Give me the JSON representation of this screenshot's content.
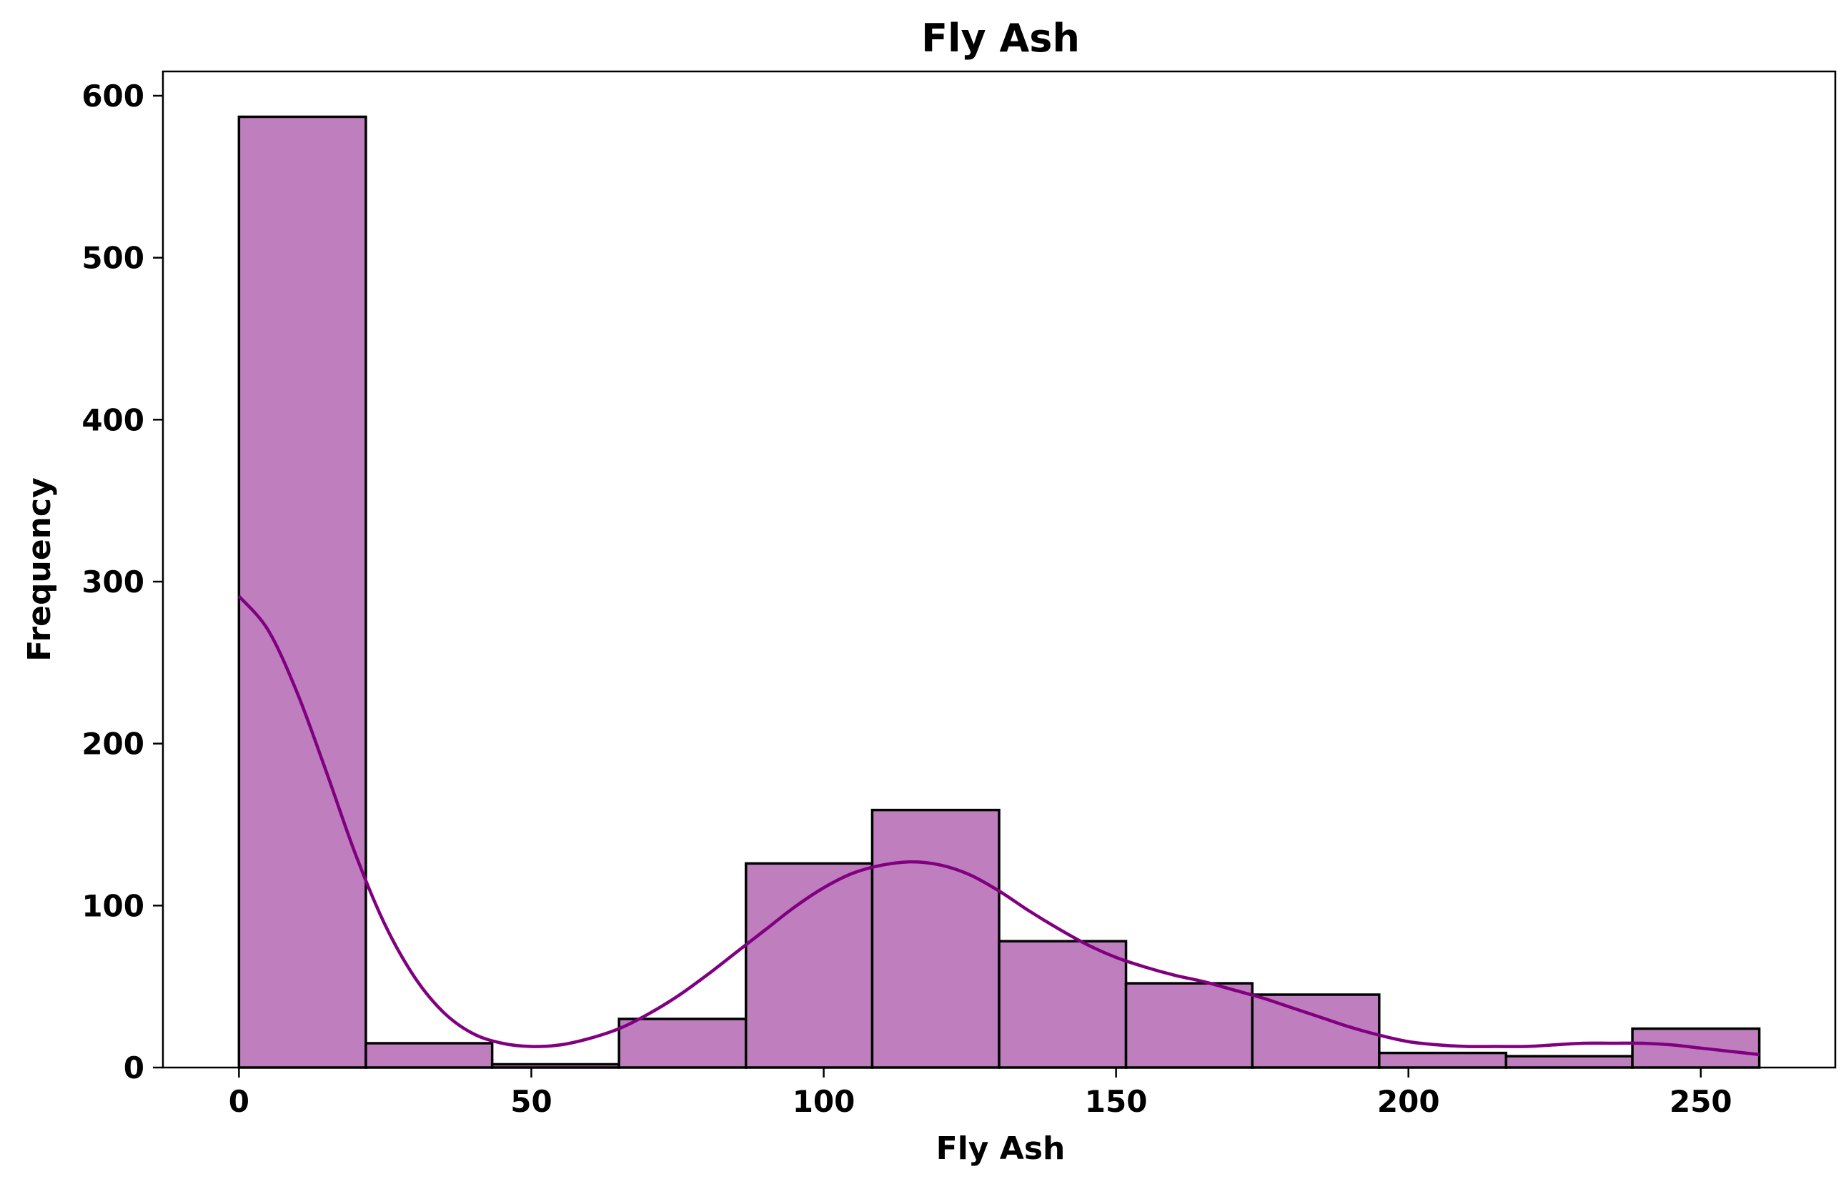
{
  "chart_data": {
    "type": "bar",
    "subtype": "histogram",
    "title": "Fly Ash",
    "xlabel": "Fly Ash",
    "ylabel": "Frequency",
    "xlim": [
      -13,
      273
    ],
    "ylim": [
      0,
      615
    ],
    "xticks": [
      0,
      50,
      100,
      150,
      200,
      250
    ],
    "yticks": [
      0,
      100,
      200,
      300,
      400,
      500,
      600
    ],
    "grid": false,
    "colors": {
      "bar_fill": "#bf7fbf",
      "bar_edge": "#000000",
      "kde_line": "#800080"
    },
    "bins": [
      {
        "x0": 0,
        "x1": 21.7,
        "count": 587
      },
      {
        "x0": 21.7,
        "x1": 43.3,
        "count": 15
      },
      {
        "x0": 43.3,
        "x1": 65.0,
        "count": 2
      },
      {
        "x0": 65.0,
        "x1": 86.7,
        "count": 30
      },
      {
        "x0": 86.7,
        "x1": 108.3,
        "count": 126
      },
      {
        "x0": 108.3,
        "x1": 130.0,
        "count": 159
      },
      {
        "x0": 130.0,
        "x1": 151.7,
        "count": 78
      },
      {
        "x0": 151.7,
        "x1": 173.3,
        "count": 52
      },
      {
        "x0": 173.3,
        "x1": 195.0,
        "count": 45
      },
      {
        "x0": 195.0,
        "x1": 216.7,
        "count": 9
      },
      {
        "x0": 216.7,
        "x1": 238.3,
        "count": 7
      },
      {
        "x0": 238.3,
        "x1": 260.0,
        "count": 24
      }
    ],
    "kde": {
      "x": [
        0,
        5,
        10,
        15,
        20,
        25,
        30,
        35,
        40,
        45,
        50,
        55,
        60,
        65,
        70,
        75,
        80,
        85,
        90,
        95,
        100,
        105,
        110,
        115,
        120,
        125,
        130,
        135,
        140,
        145,
        150,
        155,
        160,
        165,
        170,
        175,
        180,
        185,
        190,
        195,
        200,
        205,
        210,
        215,
        220,
        225,
        230,
        235,
        240,
        245,
        250,
        255,
        260
      ],
      "y": [
        291,
        270,
        231,
        182,
        131,
        88,
        56,
        34,
        21,
        15,
        13,
        14,
        18,
        24,
        33,
        44,
        57,
        71,
        85,
        99,
        111,
        120,
        125,
        127,
        125,
        119,
        109,
        97,
        86,
        76,
        68,
        62,
        57,
        53,
        48,
        43,
        37,
        31,
        25,
        20,
        16,
        14,
        13,
        13,
        13,
        14,
        15,
        15,
        15,
        14,
        12,
        10,
        8
      ]
    }
  }
}
